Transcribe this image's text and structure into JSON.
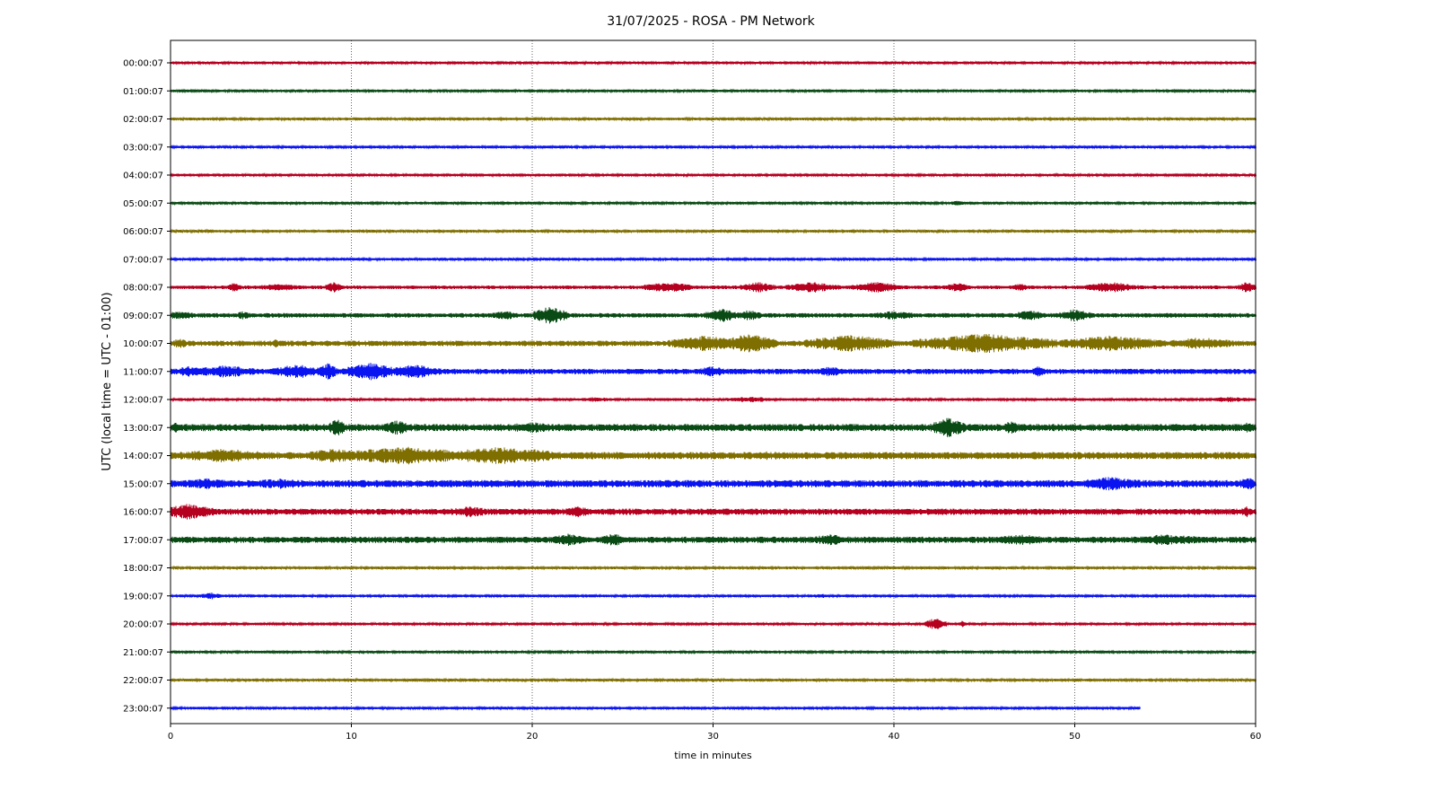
{
  "chart_data": {
    "type": "line",
    "title": "31/07/2025 - ROSA - PM Network",
    "xlabel": "time in minutes",
    "ylabel": "UTC (local time = UTC - 01:00)",
    "xlim": [
      0,
      60
    ],
    "xticks": [
      0,
      10,
      20,
      30,
      40,
      50,
      60
    ],
    "grid": "vertical dotted lines at x ticks",
    "line_colors": [
      "#b5001f",
      "#0a4a14",
      "#7f6e00",
      "#0a14f0"
    ],
    "series": [
      {
        "label": "00:00:07",
        "color": "#b5001f",
        "x_end": 60,
        "amplitude": 1.5,
        "bursts": []
      },
      {
        "label": "01:00:07",
        "color": "#0a4a14",
        "x_end": 60,
        "amplitude": 1.5,
        "bursts": [
          [
            52.5,
            0.6,
            2
          ]
        ]
      },
      {
        "label": "02:00:07",
        "color": "#7f6e00",
        "x_end": 60,
        "amplitude": 1.5,
        "bursts": []
      },
      {
        "label": "03:00:07",
        "color": "#0a14f0",
        "x_end": 60,
        "amplitude": 1.5,
        "bursts": []
      },
      {
        "label": "04:00:07",
        "color": "#b5001f",
        "x_end": 60,
        "amplitude": 1.5,
        "bursts": []
      },
      {
        "label": "05:00:07",
        "color": "#0a4a14",
        "x_end": 60,
        "amplitude": 1.5,
        "bursts": [
          [
            43.5,
            0.4,
            3
          ]
        ]
      },
      {
        "label": "06:00:07",
        "color": "#7f6e00",
        "x_end": 60,
        "amplitude": 1.5,
        "bursts": []
      },
      {
        "label": "07:00:07",
        "color": "#0a14f0",
        "x_end": 60,
        "amplitude": 1.5,
        "bursts": []
      },
      {
        "label": "08:00:07",
        "color": "#b5001f",
        "x_end": 60,
        "amplitude": 2,
        "bursts": [
          [
            3.5,
            0.4,
            5
          ],
          [
            6,
            1.5,
            4
          ],
          [
            9,
            0.5,
            6
          ],
          [
            27.5,
            1.5,
            6
          ],
          [
            32.5,
            1,
            6
          ],
          [
            35.5,
            1.5,
            6
          ],
          [
            39,
            1.5,
            6
          ],
          [
            43.5,
            0.8,
            5
          ],
          [
            47,
            0.5,
            5
          ],
          [
            52,
            1.5,
            6
          ],
          [
            59.5,
            0.5,
            6
          ]
        ]
      },
      {
        "label": "09:00:07",
        "color": "#0a4a14",
        "x_end": 60,
        "amplitude": 2.5,
        "bursts": [
          [
            0.5,
            1,
            5
          ],
          [
            4,
            0.5,
            5
          ],
          [
            18.5,
            1,
            5
          ],
          [
            21,
            1,
            10
          ],
          [
            30.5,
            1,
            8
          ],
          [
            32,
            0.8,
            6
          ],
          [
            40,
            1.5,
            5
          ],
          [
            47.5,
            1,
            6
          ],
          [
            50,
            1,
            7
          ]
        ]
      },
      {
        "label": "10:00:07",
        "color": "#7f6e00",
        "x_end": 60,
        "amplitude": 3,
        "bursts": [
          [
            0.5,
            0.5,
            6
          ],
          [
            5.8,
            0.2,
            6
          ],
          [
            29.5,
            2,
            9
          ],
          [
            32,
            1.5,
            11
          ],
          [
            37.5,
            2.5,
            10
          ],
          [
            45,
            4,
            11
          ],
          [
            52,
            3,
            9
          ],
          [
            57,
            2,
            7
          ]
        ]
      },
      {
        "label": "11:00:07",
        "color": "#0a14f0",
        "x_end": 60,
        "amplitude": 3,
        "bursts": [
          [
            1,
            1,
            6
          ],
          [
            3,
            2,
            7
          ],
          [
            7,
            1.5,
            8
          ],
          [
            8.7,
            0.5,
            10
          ],
          [
            11,
            1.5,
            10
          ],
          [
            13.5,
            1.5,
            8
          ],
          [
            30,
            1,
            6
          ],
          [
            36.5,
            0.8,
            6
          ],
          [
            48,
            0.4,
            6
          ]
        ]
      },
      {
        "label": "12:00:07",
        "color": "#b5001f",
        "x_end": 60,
        "amplitude": 1.5,
        "bursts": [
          [
            23.5,
            1,
            3
          ],
          [
            32,
            2,
            3
          ],
          [
            58.5,
            1.5,
            3
          ]
        ]
      },
      {
        "label": "13:00:07",
        "color": "#0a4a14",
        "x_end": 60,
        "amplitude": 4,
        "bursts": [
          [
            0.3,
            0.3,
            7
          ],
          [
            9.2,
            0.5,
            10
          ],
          [
            12.5,
            1,
            8
          ],
          [
            20,
            2,
            6
          ],
          [
            43,
            1,
            11
          ],
          [
            46.5,
            0.5,
            8
          ],
          [
            59.5,
            0.5,
            7
          ]
        ]
      },
      {
        "label": "14:00:07",
        "color": "#7f6e00",
        "x_end": 60,
        "amplitude": 4,
        "bursts": [
          [
            3,
            3,
            8
          ],
          [
            9,
            2,
            8
          ],
          [
            13,
            4,
            10
          ],
          [
            18,
            3,
            10
          ],
          [
            20,
            2,
            8
          ],
          [
            33,
            2,
            5
          ]
        ]
      },
      {
        "label": "15:00:07",
        "color": "#0a14f0",
        "x_end": 60,
        "amplitude": 4,
        "bursts": [
          [
            2,
            2,
            6
          ],
          [
            6,
            2,
            6
          ],
          [
            52,
            2,
            8
          ],
          [
            59.5,
            0.5,
            8
          ]
        ]
      },
      {
        "label": "16:00:07",
        "color": "#b5001f",
        "x_end": 60,
        "amplitude": 3.5,
        "bursts": [
          [
            1,
            1.5,
            9
          ],
          [
            16.5,
            1.5,
            6
          ],
          [
            22.5,
            1,
            6
          ],
          [
            59.5,
            0.5,
            6
          ]
        ]
      },
      {
        "label": "17:00:07",
        "color": "#0a4a14",
        "x_end": 60,
        "amplitude": 3.5,
        "bursts": [
          [
            22,
            1,
            7
          ],
          [
            24.5,
            1,
            7
          ],
          [
            36.5,
            1.5,
            6
          ],
          [
            47,
            2,
            6
          ],
          [
            55,
            3,
            6
          ]
        ]
      },
      {
        "label": "18:00:07",
        "color": "#7f6e00",
        "x_end": 60,
        "amplitude": 1.5,
        "bursts": []
      },
      {
        "label": "19:00:07",
        "color": "#0a14f0",
        "x_end": 60,
        "amplitude": 1.5,
        "bursts": [
          [
            2.2,
            0.6,
            4
          ],
          [
            36,
            0.5,
            3
          ]
        ]
      },
      {
        "label": "20:00:07",
        "color": "#b5001f",
        "x_end": 60,
        "amplitude": 1.5,
        "bursts": [
          [
            42.3,
            0.6,
            7
          ],
          [
            43.8,
            0.2,
            4
          ]
        ]
      },
      {
        "label": "21:00:07",
        "color": "#0a4a14",
        "x_end": 60,
        "amplitude": 1.5,
        "bursts": []
      },
      {
        "label": "22:00:07",
        "color": "#7f6e00",
        "x_end": 60,
        "amplitude": 1.5,
        "bursts": []
      },
      {
        "label": "23:00:07",
        "color": "#0a14f0",
        "x_end": 53.6,
        "amplitude": 1.5,
        "bursts": []
      }
    ]
  }
}
